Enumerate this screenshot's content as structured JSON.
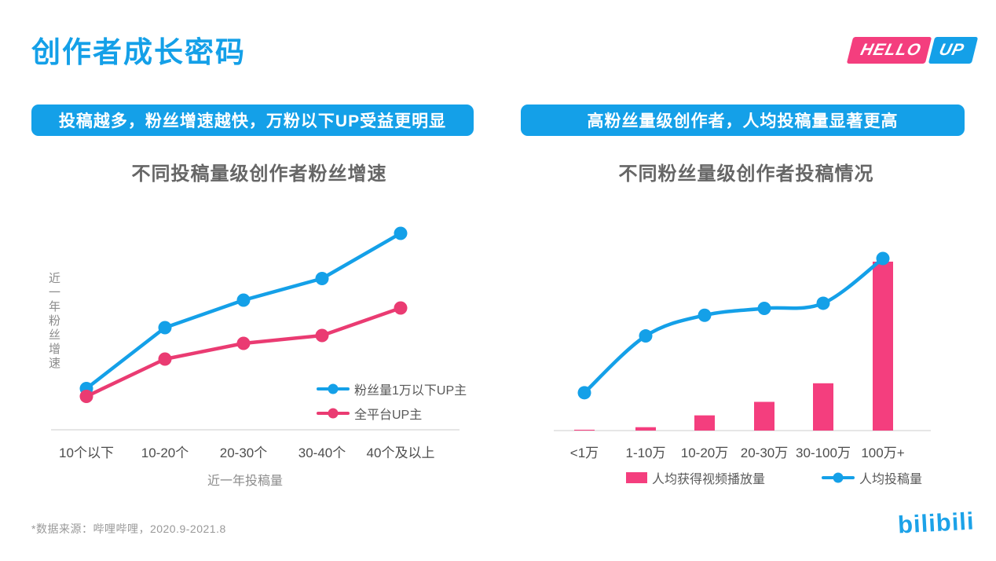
{
  "header": {
    "title": "创作者成长密码",
    "logo_hello": "HELLO",
    "logo_up": "UP"
  },
  "banners": {
    "left": "投稿越多，粉丝增速越快，万粉以下UP受益更明显",
    "right": "高粉丝量级创作者，人均投稿量显著更高"
  },
  "colors": {
    "brand_blue": "#14A0E8",
    "line_blue": "#14A0E8",
    "line_pink": "#EA3B72",
    "bar_pink": "#F43E7E",
    "axis_line": "#E6E6E6",
    "tick_label": "#4D4D4D",
    "axis_title_gray": "#8C8C8C",
    "chart_title_gray": "#666666",
    "footnote_gray": "#999999"
  },
  "chart_data": [
    {
      "id": "left-line-chart",
      "type": "line",
      "title": "不同投稿量级创作者粉丝增速",
      "categories": [
        "10个以下",
        "10-20个",
        "20-30个",
        "30-40个",
        "40个及以上"
      ],
      "series": [
        {
          "name": "粉丝量1万以下UP主",
          "color": "#14A0E8",
          "values": [
            21,
            52,
            66,
            77,
            100
          ]
        },
        {
          "name": "全平台UP主",
          "color": "#EA3B72",
          "values": [
            17,
            36,
            44,
            48,
            62
          ]
        }
      ],
      "xlabel": "近一年投稿量",
      "ylabel": "近一年粉丝增速",
      "value_units": "relative growth index (no numeric axis shown; max = 100)",
      "ylim": [
        0,
        105
      ],
      "grid": false,
      "legend_position": "inside bottom-right"
    },
    {
      "id": "right-combo-chart",
      "type": "bar",
      "title": "不同粉丝量级创作者投稿情况",
      "categories": [
        "<1万",
        "1-10万",
        "10-20万",
        "20-30万",
        "30-100万",
        "100万+"
      ],
      "series": [
        {
          "name": "人均获得视频播放量",
          "chart_type": "bar",
          "color": "#F43E7E",
          "values": [
            0.5,
            2,
            9,
            17,
            28,
            100
          ]
        },
        {
          "name": "人均投稿量",
          "chart_type": "line",
          "color": "#14A0E8",
          "values": [
            22,
            55,
            67,
            71,
            74,
            100
          ]
        }
      ],
      "xlabel": "",
      "ylabel": "",
      "value_units": "relative index (no numeric axis shown; max = 100)",
      "ylim": [
        0,
        105
      ],
      "grid": false,
      "legend_position": "bottom"
    }
  ],
  "footnote": "*数据来源：哔哩哔哩，2020.9-2021.8",
  "brand": "bilibili"
}
